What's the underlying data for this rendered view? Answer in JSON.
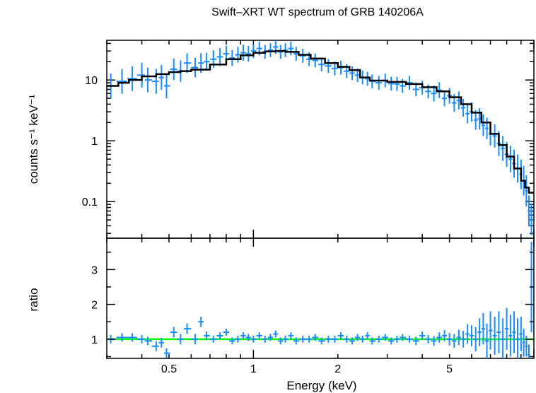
{
  "chart_data": {
    "type": "scatter",
    "title": "Swift–XRT WT spectrum of GRB 140206A",
    "xlabel": "Energy (keV)",
    "xscale": "log",
    "xlim": [
      0.3,
      10.0
    ],
    "x_tick_labels": [
      "0.5",
      "1",
      "2",
      "5"
    ],
    "x_ticks": [
      0.5,
      1,
      2,
      5
    ],
    "colors": {
      "data": "#1a8cff",
      "model": "#000000",
      "unity": "#00ff00"
    },
    "panels": [
      {
        "name": "spectrum",
        "ylabel": "counts s⁻¹ keV⁻¹",
        "yscale": "log",
        "ylim": [
          0.025,
          45
        ],
        "y_tick_labels": [
          "10",
          "1",
          "0.1"
        ],
        "y_ticks": [
          10,
          1,
          0.1
        ],
        "model": {
          "x": [
            0.3,
            0.33,
            0.36,
            0.4,
            0.45,
            0.5,
            0.55,
            0.6,
            0.7,
            0.8,
            0.9,
            1.0,
            1.1,
            1.2,
            1.3,
            1.45,
            1.6,
            1.8,
            2.0,
            2.2,
            2.4,
            2.6,
            3.0,
            3.5,
            4.0,
            4.5,
            5.0,
            5.5,
            6.0,
            6.5,
            7.0,
            7.5,
            8.0,
            8.5,
            9.0,
            9.3,
            9.6,
            10.0
          ],
          "y": [
            8.0,
            9.0,
            10.0,
            11.5,
            12.5,
            13.5,
            14.0,
            14.8,
            18.0,
            22.0,
            25.5,
            28.0,
            29.5,
            30.0,
            29.0,
            26.0,
            22.5,
            19.0,
            16.5,
            14.5,
            11.0,
            9.8,
            9.3,
            8.6,
            7.6,
            6.5,
            5.2,
            4.0,
            2.9,
            2.0,
            1.3,
            0.85,
            0.55,
            0.35,
            0.22,
            0.17,
            0.14,
            0.14
          ]
        },
        "data_points": {
          "x": [
            0.31,
            0.34,
            0.37,
            0.4,
            0.42,
            0.45,
            0.47,
            0.49,
            0.52,
            0.55,
            0.58,
            0.62,
            0.65,
            0.68,
            0.72,
            0.76,
            0.8,
            0.84,
            0.88,
            0.92,
            0.96,
            1.0,
            1.05,
            1.1,
            1.15,
            1.2,
            1.25,
            1.3,
            1.36,
            1.42,
            1.5,
            1.58,
            1.66,
            1.75,
            1.85,
            1.95,
            2.05,
            2.15,
            2.25,
            2.35,
            2.45,
            2.55,
            2.65,
            2.8,
            2.95,
            3.1,
            3.25,
            3.4,
            3.6,
            3.8,
            4.0,
            4.2,
            4.4,
            4.6,
            4.8,
            5.0,
            5.2,
            5.4,
            5.6,
            5.8,
            6.0,
            6.2,
            6.4,
            6.6,
            6.8,
            7.0,
            7.25,
            7.5,
            7.75,
            8.0,
            8.25,
            8.5,
            8.75,
            9.0,
            9.2,
            9.4,
            9.6,
            9.8
          ],
          "y": [
            8.0,
            9.5,
            10.5,
            12.0,
            10.0,
            9.5,
            11.0,
            8.0,
            15.0,
            14.0,
            19.0,
            16.0,
            19.0,
            20.0,
            22.0,
            24.0,
            27.0,
            23.0,
            26.0,
            28.0,
            27.0,
            30.0,
            33.0,
            29.0,
            31.0,
            35.0,
            29.0,
            31.0,
            33.0,
            27.0,
            25.0,
            22.0,
            21.0,
            18.0,
            17.0,
            15.5,
            16.0,
            14.0,
            13.0,
            12.0,
            11.0,
            10.5,
            9.5,
            9.0,
            9.8,
            8.7,
            8.6,
            8.0,
            9.0,
            7.0,
            7.5,
            6.5,
            6.0,
            6.8,
            5.0,
            5.5,
            4.2,
            4.6,
            3.5,
            2.8,
            3.0,
            2.2,
            2.3,
            1.8,
            1.6,
            1.3,
            1.2,
            0.9,
            0.75,
            0.6,
            0.5,
            0.42,
            0.35,
            0.28,
            0.22,
            0.15,
            0.07,
            0.05
          ],
          "yerr": [
            0.6,
            0.6,
            0.6,
            0.6,
            0.6,
            0.6,
            0.6,
            0.6,
            0.5,
            0.5,
            0.45,
            0.45,
            0.45,
            0.4,
            0.4,
            0.4,
            0.35,
            0.35,
            0.35,
            0.35,
            0.35,
            0.3,
            0.3,
            0.3,
            0.3,
            0.3,
            0.3,
            0.3,
            0.3,
            0.3,
            0.3,
            0.3,
            0.3,
            0.3,
            0.3,
            0.3,
            0.3,
            0.3,
            0.3,
            0.3,
            0.3,
            0.3,
            0.3,
            0.3,
            0.3,
            0.3,
            0.3,
            0.3,
            0.3,
            0.3,
            0.3,
            0.3,
            0.35,
            0.35,
            0.35,
            0.35,
            0.4,
            0.4,
            0.4,
            0.45,
            0.45,
            0.45,
            0.5,
            0.5,
            0.5,
            0.55,
            0.55,
            0.6,
            0.6,
            0.6,
            0.65,
            0.7,
            0.7,
            0.75,
            0.75,
            0.8,
            0.8,
            0.8
          ]
        }
      },
      {
        "name": "ratio",
        "ylabel": "ratio",
        "yscale": "linear",
        "ylim": [
          0.45,
          3.9
        ],
        "y_tick_labels": [
          "3",
          "2",
          "1"
        ],
        "y_ticks": [
          3,
          2,
          1
        ],
        "reference_line": 1,
        "data_points": {
          "x": [
            0.31,
            0.34,
            0.37,
            0.4,
            0.42,
            0.45,
            0.47,
            0.49,
            0.52,
            0.55,
            0.58,
            0.62,
            0.65,
            0.68,
            0.72,
            0.76,
            0.8,
            0.84,
            0.88,
            0.92,
            0.96,
            1.0,
            1.05,
            1.1,
            1.15,
            1.2,
            1.25,
            1.3,
            1.36,
            1.42,
            1.5,
            1.58,
            1.66,
            1.75,
            1.85,
            1.95,
            2.05,
            2.15,
            2.25,
            2.35,
            2.45,
            2.55,
            2.65,
            2.8,
            2.95,
            3.1,
            3.25,
            3.4,
            3.6,
            3.8,
            4.0,
            4.2,
            4.4,
            4.6,
            4.8,
            5.0,
            5.2,
            5.4,
            5.6,
            5.8,
            6.0,
            6.2,
            6.4,
            6.6,
            6.8,
            7.0,
            7.25,
            7.5,
            7.75,
            8.0,
            8.25,
            8.5,
            8.75,
            9.0,
            9.2,
            9.4,
            9.6,
            9.8
          ],
          "y": [
            1.0,
            1.05,
            1.05,
            1.0,
            0.95,
            0.8,
            0.9,
            0.6,
            1.2,
            1.0,
            1.3,
            1.0,
            1.5,
            1.1,
            1.0,
            1.1,
            1.2,
            0.95,
            1.0,
            1.1,
            1.05,
            1.0,
            1.1,
            1.0,
            1.05,
            1.15,
            0.95,
            1.0,
            1.1,
            0.95,
            1.0,
            1.0,
            1.05,
            0.95,
            1.0,
            1.0,
            1.1,
            1.0,
            0.95,
            1.05,
            1.0,
            1.1,
            0.95,
            1.0,
            1.05,
            0.95,
            1.0,
            1.05,
            1.0,
            0.95,
            1.1,
            1.0,
            0.95,
            1.05,
            1.1,
            1.0,
            0.95,
            1.05,
            1.0,
            1.15,
            1.1,
            1.0,
            1.2,
            1.3,
            0.95,
            1.25,
            1.1,
            1.2,
            1.0,
            1.3,
            1.1,
            1.2,
            1.0,
            1.15,
            0.9,
            0.8,
            0.55,
            2.5
          ],
          "yerr": [
            0.12,
            0.12,
            0.12,
            0.12,
            0.12,
            0.14,
            0.14,
            0.14,
            0.15,
            0.15,
            0.15,
            0.15,
            0.15,
            0.12,
            0.1,
            0.1,
            0.1,
            0.1,
            0.1,
            0.1,
            0.1,
            0.1,
            0.1,
            0.1,
            0.1,
            0.1,
            0.1,
            0.1,
            0.1,
            0.1,
            0.1,
            0.1,
            0.1,
            0.1,
            0.1,
            0.1,
            0.1,
            0.1,
            0.1,
            0.1,
            0.1,
            0.1,
            0.1,
            0.1,
            0.1,
            0.1,
            0.1,
            0.1,
            0.1,
            0.12,
            0.12,
            0.12,
            0.14,
            0.15,
            0.16,
            0.18,
            0.2,
            0.22,
            0.24,
            0.28,
            0.3,
            0.35,
            0.4,
            0.45,
            0.5,
            0.55,
            0.55,
            0.6,
            0.6,
            0.6,
            0.6,
            0.6,
            0.6,
            0.5,
            0.4,
            0.3,
            0.3,
            1.3
          ]
        }
      }
    ]
  }
}
